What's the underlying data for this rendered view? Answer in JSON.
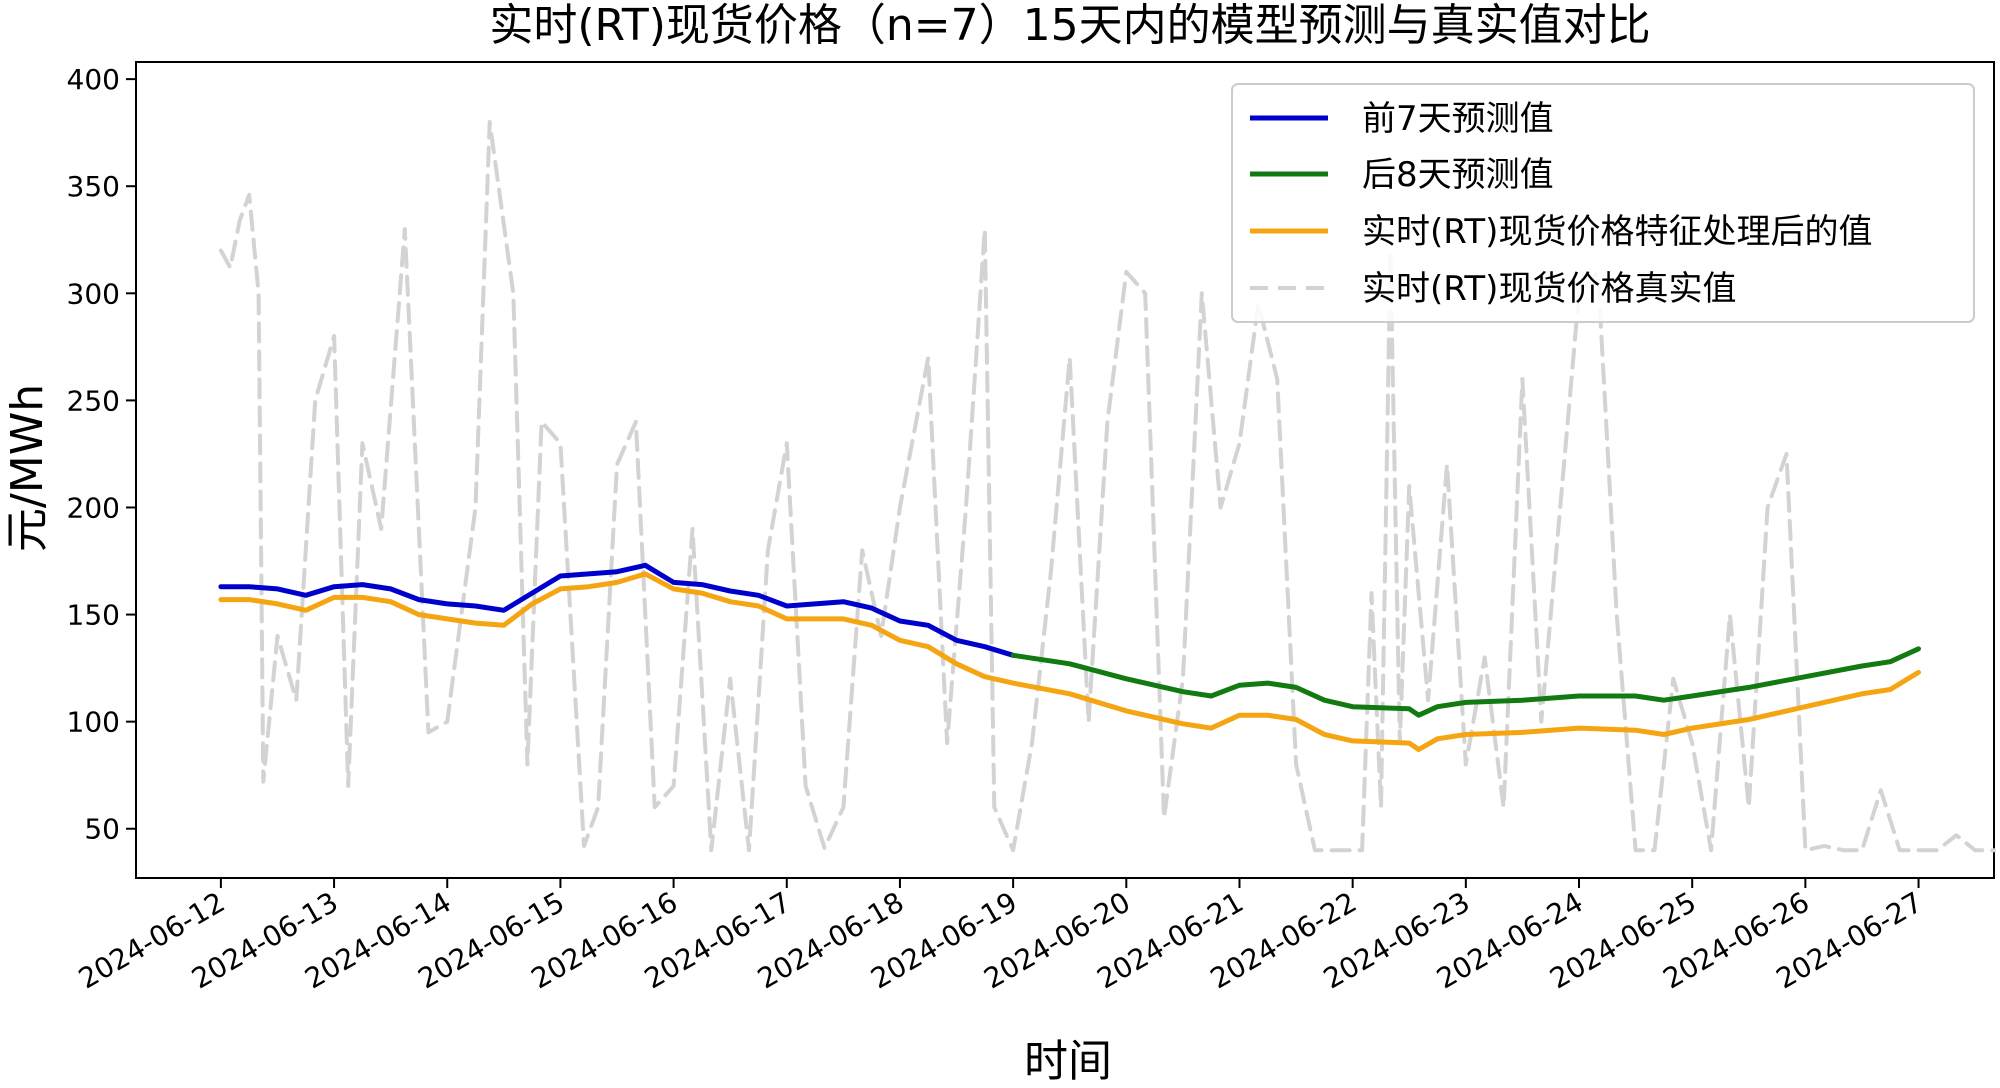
{
  "chart_data": {
    "type": "line",
    "title": "实时(RT)现货价格（n=7）15天内的模型预测与真实值对比",
    "xlabel": "时间",
    "ylabel": "元/MWh",
    "x_ticks": [
      "2024-06-12",
      "2024-06-13",
      "2024-06-14",
      "2024-06-15",
      "2024-06-16",
      "2024-06-17",
      "2024-06-18",
      "2024-06-19",
      "2024-06-20",
      "2024-06-21",
      "2024-06-22",
      "2024-06-23",
      "2024-06-24",
      "2024-06-25",
      "2024-06-26",
      "2024-06-27"
    ],
    "y_ticks": [
      50,
      100,
      150,
      200,
      250,
      300,
      350,
      400
    ],
    "xlim": [
      "2024-06-11T06:00",
      "2024-06-27T16:00"
    ],
    "ylim": [
      27,
      408
    ],
    "grid": false,
    "legend_position": "top-right",
    "series": [
      {
        "name": "前7天预测值",
        "color": "#0000cc",
        "style": "solid",
        "points": [
          [
            "2024-06-12T00:00",
            163
          ],
          [
            "2024-06-12T06:00",
            163
          ],
          [
            "2024-06-12T12:00",
            162
          ],
          [
            "2024-06-12T18:00",
            159
          ],
          [
            "2024-06-13T00:00",
            163
          ],
          [
            "2024-06-13T06:00",
            164
          ],
          [
            "2024-06-13T12:00",
            162
          ],
          [
            "2024-06-13T18:00",
            157
          ],
          [
            "2024-06-14T00:00",
            155
          ],
          [
            "2024-06-14T06:00",
            154
          ],
          [
            "2024-06-14T12:00",
            152
          ],
          [
            "2024-06-14T18:00",
            160
          ],
          [
            "2024-06-15T00:00",
            168
          ],
          [
            "2024-06-15T06:00",
            169
          ],
          [
            "2024-06-15T12:00",
            170
          ],
          [
            "2024-06-15T18:00",
            173
          ],
          [
            "2024-06-16T00:00",
            165
          ],
          [
            "2024-06-16T06:00",
            164
          ],
          [
            "2024-06-16T12:00",
            161
          ],
          [
            "2024-06-16T18:00",
            159
          ],
          [
            "2024-06-17T00:00",
            154
          ],
          [
            "2024-06-17T06:00",
            155
          ],
          [
            "2024-06-17T12:00",
            156
          ],
          [
            "2024-06-17T18:00",
            153
          ],
          [
            "2024-06-18T00:00",
            147
          ],
          [
            "2024-06-18T06:00",
            145
          ],
          [
            "2024-06-18T12:00",
            138
          ],
          [
            "2024-06-18T18:00",
            135
          ],
          [
            "2024-06-19T00:00",
            131
          ]
        ]
      },
      {
        "name": "后8天预测值",
        "color": "#117a11",
        "style": "solid",
        "points": [
          [
            "2024-06-19T00:00",
            131
          ],
          [
            "2024-06-19T12:00",
            127
          ],
          [
            "2024-06-20T00:00",
            120
          ],
          [
            "2024-06-20T12:00",
            114
          ],
          [
            "2024-06-20T18:00",
            112
          ],
          [
            "2024-06-21T00:00",
            117
          ],
          [
            "2024-06-21T06:00",
            118
          ],
          [
            "2024-06-21T12:00",
            116
          ],
          [
            "2024-06-21T18:00",
            110
          ],
          [
            "2024-06-22T00:00",
            107
          ],
          [
            "2024-06-22T12:00",
            106
          ],
          [
            "2024-06-22T14:00",
            103
          ],
          [
            "2024-06-22T18:00",
            107
          ],
          [
            "2024-06-23T00:00",
            109
          ],
          [
            "2024-06-23T12:00",
            110
          ],
          [
            "2024-06-24T00:00",
            112
          ],
          [
            "2024-06-24T12:00",
            112
          ],
          [
            "2024-06-24T18:00",
            110
          ],
          [
            "2024-06-25T00:00",
            112
          ],
          [
            "2024-06-25T12:00",
            116
          ],
          [
            "2024-06-26T00:00",
            121
          ],
          [
            "2024-06-26T12:00",
            126
          ],
          [
            "2024-06-26T18:00",
            128
          ],
          [
            "2024-06-27T00:00",
            134
          ]
        ]
      },
      {
        "name": "实时(RT)现货价格特征处理后的值",
        "color": "#f5a412",
        "style": "solid",
        "points": [
          [
            "2024-06-12T00:00",
            157
          ],
          [
            "2024-06-12T06:00",
            157
          ],
          [
            "2024-06-12T12:00",
            155
          ],
          [
            "2024-06-12T18:00",
            152
          ],
          [
            "2024-06-13T00:00",
            158
          ],
          [
            "2024-06-13T06:00",
            158
          ],
          [
            "2024-06-13T12:00",
            156
          ],
          [
            "2024-06-13T18:00",
            150
          ],
          [
            "2024-06-14T00:00",
            148
          ],
          [
            "2024-06-14T06:00",
            146
          ],
          [
            "2024-06-14T12:00",
            145
          ],
          [
            "2024-06-14T18:00",
            155
          ],
          [
            "2024-06-15T00:00",
            162
          ],
          [
            "2024-06-15T06:00",
            163
          ],
          [
            "2024-06-15T12:00",
            165
          ],
          [
            "2024-06-15T18:00",
            169
          ],
          [
            "2024-06-16T00:00",
            162
          ],
          [
            "2024-06-16T06:00",
            160
          ],
          [
            "2024-06-16T12:00",
            156
          ],
          [
            "2024-06-16T18:00",
            154
          ],
          [
            "2024-06-17T00:00",
            148
          ],
          [
            "2024-06-17T06:00",
            148
          ],
          [
            "2024-06-17T12:00",
            148
          ],
          [
            "2024-06-17T18:00",
            145
          ],
          [
            "2024-06-18T00:00",
            138
          ],
          [
            "2024-06-18T06:00",
            135
          ],
          [
            "2024-06-18T12:00",
            127
          ],
          [
            "2024-06-18T18:00",
            121
          ],
          [
            "2024-06-19T00:00",
            118
          ],
          [
            "2024-06-19T12:00",
            113
          ],
          [
            "2024-06-20T00:00",
            105
          ],
          [
            "2024-06-20T12:00",
            99
          ],
          [
            "2024-06-20T18:00",
            97
          ],
          [
            "2024-06-21T00:00",
            103
          ],
          [
            "2024-06-21T06:00",
            103
          ],
          [
            "2024-06-21T12:00",
            101
          ],
          [
            "2024-06-21T18:00",
            94
          ],
          [
            "2024-06-22T00:00",
            91
          ],
          [
            "2024-06-22T12:00",
            90
          ],
          [
            "2024-06-22T14:00",
            87
          ],
          [
            "2024-06-22T18:00",
            92
          ],
          [
            "2024-06-23T00:00",
            94
          ],
          [
            "2024-06-23T12:00",
            95
          ],
          [
            "2024-06-24T00:00",
            97
          ],
          [
            "2024-06-24T12:00",
            96
          ],
          [
            "2024-06-24T18:00",
            94
          ],
          [
            "2024-06-25T00:00",
            97
          ],
          [
            "2024-06-25T12:00",
            101
          ],
          [
            "2024-06-26T00:00",
            107
          ],
          [
            "2024-06-26T12:00",
            113
          ],
          [
            "2024-06-26T18:00",
            115
          ],
          [
            "2024-06-27T00:00",
            123
          ]
        ]
      },
      {
        "name": "实时(RT)现货价格真实值",
        "color": "#d3d3d3",
        "style": "dashed",
        "points": [
          [
            "2024-06-12T00:00",
            320
          ],
          [
            "2024-06-12T02:00",
            312
          ],
          [
            "2024-06-12T04:00",
            334
          ],
          [
            "2024-06-12T06:00",
            346
          ],
          [
            "2024-06-12T08:00",
            300
          ],
          [
            "2024-06-12T09:00",
            72
          ],
          [
            "2024-06-12T12:00",
            140
          ],
          [
            "2024-06-12T16:00",
            110
          ],
          [
            "2024-06-12T20:00",
            250
          ],
          [
            "2024-06-13T00:00",
            280
          ],
          [
            "2024-06-13T03:00",
            70
          ],
          [
            "2024-06-13T06:00",
            230
          ],
          [
            "2024-06-13T10:00",
            190
          ],
          [
            "2024-06-13T15:00",
            330
          ],
          [
            "2024-06-13T20:00",
            95
          ],
          [
            "2024-06-14T00:00",
            100
          ],
          [
            "2024-06-14T06:00",
            200
          ],
          [
            "2024-06-14T09:00",
            380
          ],
          [
            "2024-06-14T14:00",
            300
          ],
          [
            "2024-06-14T17:00",
            80
          ],
          [
            "2024-06-14T20:00",
            240
          ],
          [
            "2024-06-15T00:00",
            230
          ],
          [
            "2024-06-15T05:00",
            42
          ],
          [
            "2024-06-15T08:00",
            60
          ],
          [
            "2024-06-15T12:00",
            220
          ],
          [
            "2024-06-15T16:00",
            240
          ],
          [
            "2024-06-15T20:00",
            60
          ],
          [
            "2024-06-16T00:00",
            70
          ],
          [
            "2024-06-16T04:00",
            190
          ],
          [
            "2024-06-16T08:00",
            40
          ],
          [
            "2024-06-16T12:00",
            120
          ],
          [
            "2024-06-16T16:00",
            40
          ],
          [
            "2024-06-16T20:00",
            180
          ],
          [
            "2024-06-17T00:00",
            230
          ],
          [
            "2024-06-17T04:00",
            70
          ],
          [
            "2024-06-17T08:00",
            41
          ],
          [
            "2024-06-17T12:00",
            60
          ],
          [
            "2024-06-17T16:00",
            180
          ],
          [
            "2024-06-17T20:00",
            140
          ],
          [
            "2024-06-18T00:00",
            200
          ],
          [
            "2024-06-18T06:00",
            270
          ],
          [
            "2024-06-18T10:00",
            90
          ],
          [
            "2024-06-18T14:00",
            200
          ],
          [
            "2024-06-18T18:00",
            330
          ],
          [
            "2024-06-18T20:00",
            60
          ],
          [
            "2024-06-19T00:00",
            40
          ],
          [
            "2024-06-19T04:00",
            90
          ],
          [
            "2024-06-19T08:00",
            170
          ],
          [
            "2024-06-19T12:00",
            270
          ],
          [
            "2024-06-19T16:00",
            100
          ],
          [
            "2024-06-19T20:00",
            240
          ],
          [
            "2024-06-20T00:00",
            310
          ],
          [
            "2024-06-20T04:00",
            300
          ],
          [
            "2024-06-20T08:00",
            55
          ],
          [
            "2024-06-20T12:00",
            120
          ],
          [
            "2024-06-20T16:00",
            300
          ],
          [
            "2024-06-20T20:00",
            200
          ],
          [
            "2024-06-21T00:00",
            230
          ],
          [
            "2024-06-21T04:00",
            295
          ],
          [
            "2024-06-21T08:00",
            260
          ],
          [
            "2024-06-21T12:00",
            80
          ],
          [
            "2024-06-21T16:00",
            40
          ],
          [
            "2024-06-21T20:00",
            40
          ],
          [
            "2024-06-22T00:00",
            40
          ],
          [
            "2024-06-22T02:00",
            40
          ],
          [
            "2024-06-22T04:00",
            160
          ],
          [
            "2024-06-22T06:00",
            60
          ],
          [
            "2024-06-22T08:00",
            320
          ],
          [
            "2024-06-22T10:00",
            90
          ],
          [
            "2024-06-22T12:00",
            210
          ],
          [
            "2024-06-22T16:00",
            110
          ],
          [
            "2024-06-22T20:00",
            220
          ],
          [
            "2024-06-23T00:00",
            80
          ],
          [
            "2024-06-23T04:00",
            130
          ],
          [
            "2024-06-23T08:00",
            60
          ],
          [
            "2024-06-23T12:00",
            260
          ],
          [
            "2024-06-23T16:00",
            100
          ],
          [
            "2024-06-23T20:00",
            200
          ],
          [
            "2024-06-24T00:00",
            300
          ],
          [
            "2024-06-24T04:00",
            310
          ],
          [
            "2024-06-24T08:00",
            150
          ],
          [
            "2024-06-24T12:00",
            40
          ],
          [
            "2024-06-24T16:00",
            40
          ],
          [
            "2024-06-24T20:00",
            120
          ],
          [
            "2024-06-25T00:00",
            90
          ],
          [
            "2024-06-25T04:00",
            40
          ],
          [
            "2024-06-25T08:00",
            150
          ],
          [
            "2024-06-25T12:00",
            60
          ],
          [
            "2024-06-25T16:00",
            200
          ],
          [
            "2024-06-25T20:00",
            225
          ],
          [
            "2024-06-26T00:00",
            40
          ],
          [
            "2024-06-26T04:00",
            42
          ],
          [
            "2024-06-26T08:00",
            40
          ],
          [
            "2024-06-26T12:00",
            40
          ],
          [
            "2024-06-26T16:00",
            68
          ],
          [
            "2024-06-26T20:00",
            40
          ],
          [
            "2024-06-27T00:00",
            40
          ],
          [
            "2024-06-27T04:00",
            40
          ],
          [
            "2024-06-27T08:00",
            47
          ],
          [
            "2024-06-27T12:00",
            40
          ],
          [
            "2024-06-27T16:00",
            40
          ]
        ]
      }
    ]
  }
}
